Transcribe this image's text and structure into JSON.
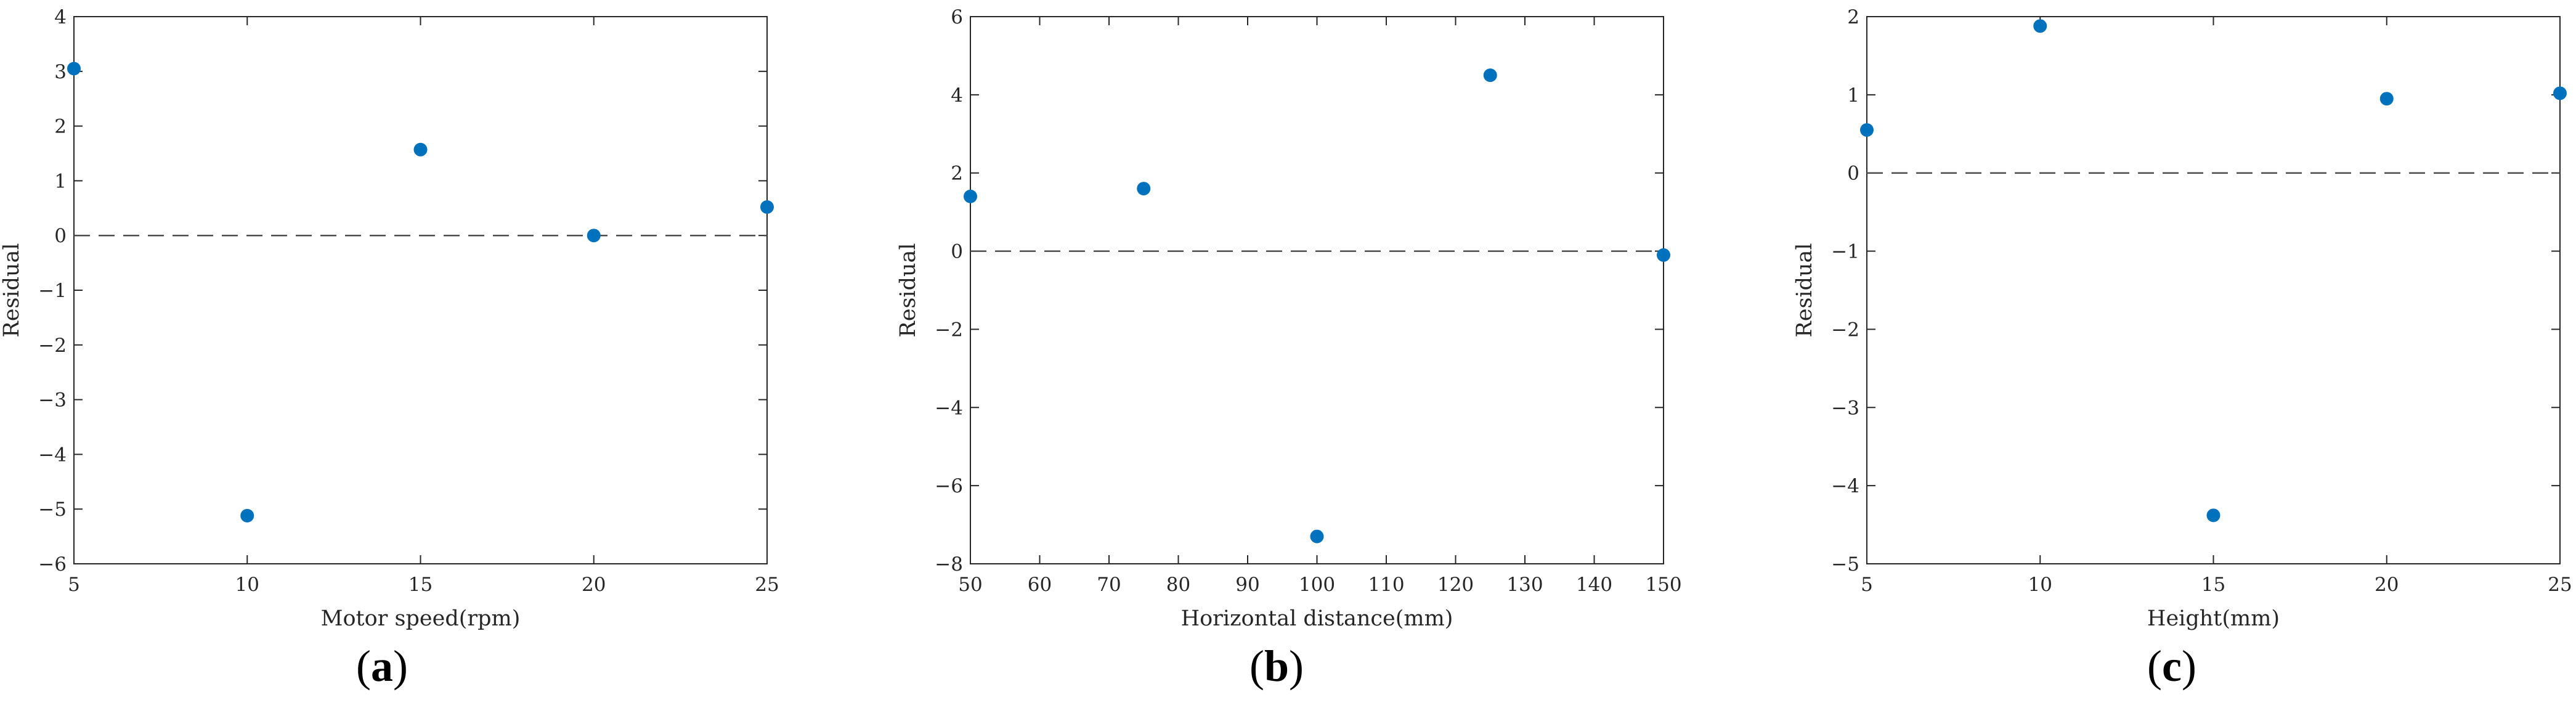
{
  "chart_data": [
    {
      "type": "scatter",
      "panel_label": "a",
      "xlabel": "Motor speed(rpm)",
      "ylabel": "Residual",
      "xlim": [
        5,
        25
      ],
      "ylim": [
        -6,
        4
      ],
      "xticks": [
        5,
        10,
        15,
        20,
        25
      ],
      "yticks": [
        -6,
        -5,
        -4,
        -3,
        -2,
        -1,
        0,
        1,
        2,
        3,
        4
      ],
      "x": [
        5,
        10,
        15,
        20,
        25
      ],
      "y": [
        3.05,
        -5.12,
        1.57,
        0.0,
        0.52
      ],
      "reference_line": 0,
      "grid": false,
      "marker_color": "#0072BD"
    },
    {
      "type": "scatter",
      "panel_label": "b",
      "xlabel": "Horizontal distance(mm)",
      "ylabel": "Residual",
      "xlim": [
        50,
        150
      ],
      "ylim": [
        -8,
        6
      ],
      "xticks": [
        50,
        60,
        70,
        80,
        90,
        100,
        110,
        120,
        130,
        140,
        150
      ],
      "yticks": [
        -8,
        -6,
        -4,
        -2,
        0,
        2,
        4,
        6
      ],
      "x": [
        50,
        75,
        100,
        125,
        150
      ],
      "y": [
        1.4,
        1.6,
        -7.3,
        4.5,
        -0.1
      ],
      "reference_line": 0,
      "grid": false,
      "marker_color": "#0072BD"
    },
    {
      "type": "scatter",
      "panel_label": "c",
      "xlabel": "Height(mm)",
      "ylabel": "Residual",
      "xlim": [
        5,
        25
      ],
      "ylim": [
        -5,
        2
      ],
      "xticks": [
        5,
        10,
        15,
        20,
        25
      ],
      "yticks": [
        -5,
        -4,
        -3,
        -2,
        -1,
        0,
        1,
        2
      ],
      "x": [
        5,
        10,
        15,
        20,
        25
      ],
      "y": [
        0.55,
        1.88,
        -4.38,
        0.95,
        1.02
      ],
      "reference_line": 0,
      "grid": false,
      "marker_color": "#0072BD"
    }
  ]
}
